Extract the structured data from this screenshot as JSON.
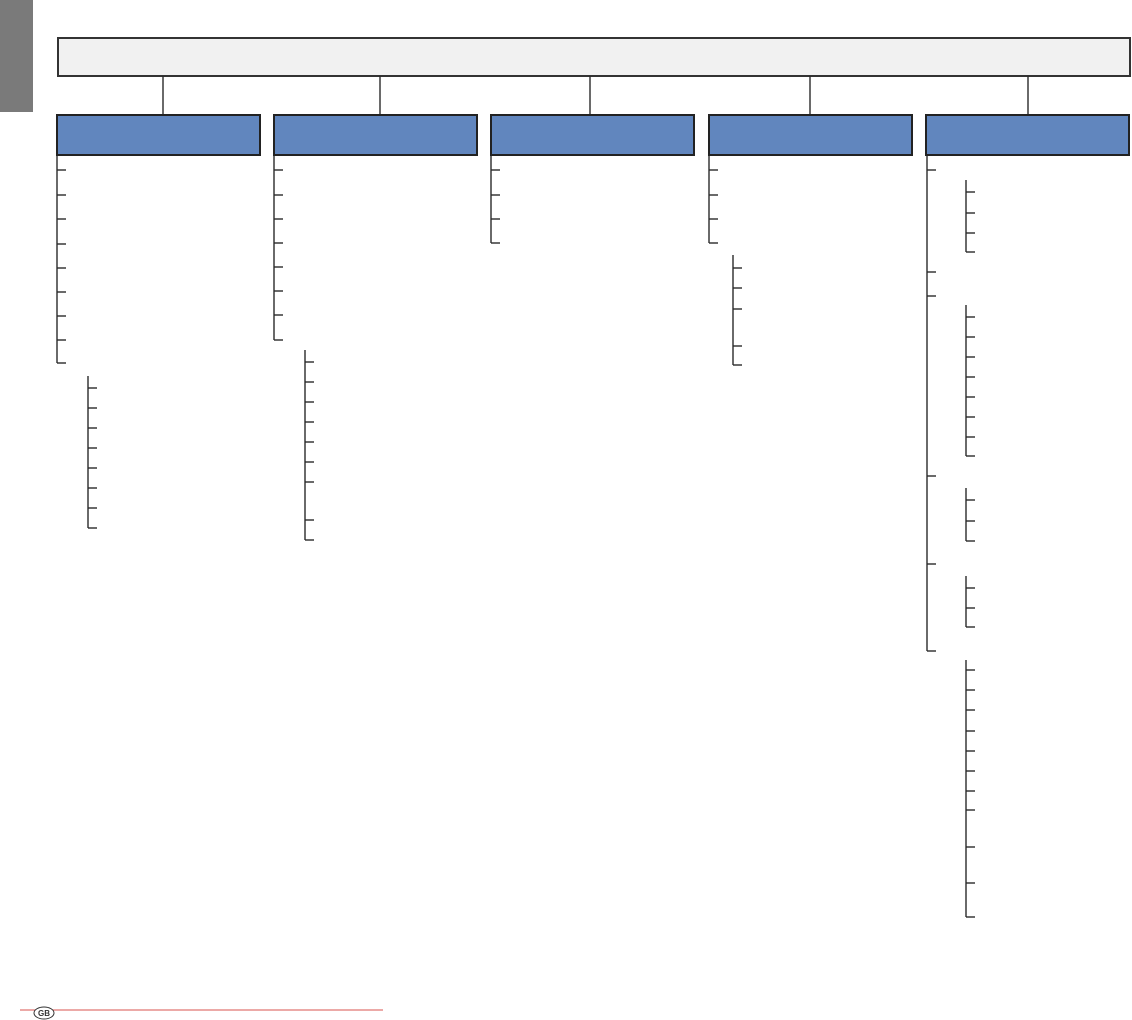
{
  "footer": {
    "badge": "GB"
  }
}
